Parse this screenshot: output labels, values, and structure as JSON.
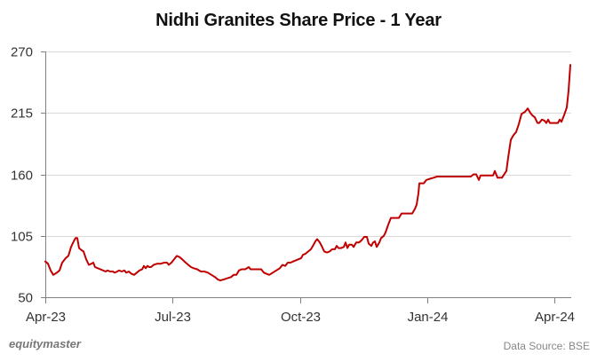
{
  "title": "Nidhi Granites Share Price - 1 Year",
  "footer": {
    "brand": "equitymaster",
    "source": "Data Source: BSE"
  },
  "colors": {
    "line": "#c00000",
    "grid": "#d9d9d9",
    "axis": "#808080"
  },
  "chart_data": {
    "type": "line",
    "title": "Nidhi Granites Share Price - 1 Year",
    "xlabel": "",
    "ylabel": "",
    "ylim": [
      50,
      270
    ],
    "yticks": [
      50,
      105,
      160,
      215,
      270
    ],
    "xticks": [
      "Apr-23",
      "Jul-23",
      "Oct-23",
      "Jan-24",
      "Apr-24"
    ],
    "grid": true,
    "legend": "none",
    "series": [
      {
        "name": "Share Price",
        "points": [
          [
            51,
            82
          ],
          [
            54,
            80
          ],
          [
            57,
            74
          ],
          [
            60,
            70
          ],
          [
            64,
            72
          ],
          [
            67,
            74
          ],
          [
            70,
            81
          ],
          [
            74,
            85
          ],
          [
            77,
            87
          ],
          [
            80,
            95
          ],
          [
            83,
            100
          ],
          [
            85,
            103
          ],
          [
            87,
            103
          ],
          [
            89,
            94
          ],
          [
            92,
            92
          ],
          [
            94,
            91
          ],
          [
            97,
            84
          ],
          [
            100,
            79
          ],
          [
            103,
            80
          ],
          [
            105,
            81
          ],
          [
            107,
            77
          ],
          [
            110,
            76
          ],
          [
            113,
            75
          ],
          [
            116,
            74
          ],
          [
            119,
            73
          ],
          [
            121,
            74
          ],
          [
            124,
            73
          ],
          [
            127,
            73
          ],
          [
            129,
            72
          ],
          [
            132,
            73
          ],
          [
            134,
            74
          ],
          [
            137,
            73
          ],
          [
            140,
            74
          ],
          [
            142,
            72
          ],
          [
            145,
            73
          ],
          [
            148,
            71
          ],
          [
            151,
            70
          ],
          [
            154,
            72
          ],
          [
            157,
            74
          ],
          [
            160,
            75
          ],
          [
            162,
            78
          ],
          [
            164,
            76
          ],
          [
            166,
            78
          ],
          [
            168,
            77
          ],
          [
            170,
            77
          ],
          [
            173,
            79
          ],
          [
            177,
            80
          ],
          [
            181,
            80
          ],
          [
            185,
            81
          ],
          [
            188,
            81
          ],
          [
            190,
            79
          ],
          [
            193,
            81
          ],
          [
            196,
            84
          ],
          [
            199,
            87
          ],
          [
            202,
            86
          ],
          [
            205,
            84
          ],
          [
            209,
            81
          ],
          [
            212,
            79
          ],
          [
            215,
            77
          ],
          [
            218,
            76
          ],
          [
            222,
            75
          ],
          [
            226,
            73
          ],
          [
            230,
            73
          ],
          [
            234,
            72
          ],
          [
            238,
            70
          ],
          [
            242,
            68
          ],
          [
            245,
            66
          ],
          [
            248,
            65
          ],
          [
            252,
            66
          ],
          [
            256,
            67
          ],
          [
            260,
            68
          ],
          [
            263,
            70
          ],
          [
            266,
            70
          ],
          [
            269,
            74
          ],
          [
            272,
            75
          ],
          [
            276,
            75
          ],
          [
            280,
            77
          ],
          [
            282,
            75
          ],
          [
            285,
            75
          ],
          [
            289,
            75
          ],
          [
            294,
            75
          ],
          [
            297,
            72
          ],
          [
            300,
            71
          ],
          [
            303,
            70
          ],
          [
            307,
            72
          ],
          [
            311,
            74
          ],
          [
            315,
            76
          ],
          [
            318,
            79
          ],
          [
            321,
            78
          ],
          [
            324,
            81
          ],
          [
            327,
            81
          ],
          [
            330,
            82
          ],
          [
            333,
            83
          ],
          [
            336,
            84
          ],
          [
            339,
            85
          ],
          [
            341,
            88
          ],
          [
            344,
            89
          ],
          [
            347,
            91
          ],
          [
            350,
            93
          ],
          [
            353,
            97
          ],
          [
            355,
            100
          ],
          [
            357,
            102
          ],
          [
            360,
            99
          ],
          [
            362,
            96
          ],
          [
            365,
            91
          ],
          [
            368,
            90
          ],
          [
            371,
            91
          ],
          [
            374,
            93
          ],
          [
            377,
            93
          ],
          [
            379,
            96
          ],
          [
            381,
            94
          ],
          [
            384,
            94
          ],
          [
            387,
            95
          ],
          [
            389,
            99
          ],
          [
            391,
            94
          ],
          [
            393,
            97
          ],
          [
            396,
            97
          ],
          [
            398,
            95
          ],
          [
            401,
            99
          ],
          [
            404,
            99
          ],
          [
            407,
            101
          ],
          [
            410,
            104
          ],
          [
            413,
            104
          ],
          [
            415,
            98
          ],
          [
            418,
            96
          ],
          [
            420,
            99
          ],
          [
            422,
            100
          ],
          [
            424,
            95
          ],
          [
            427,
            99
          ],
          [
            429,
            103
          ],
          [
            432,
            105
          ],
          [
            434,
            108
          ],
          [
            437,
            115
          ],
          [
            440,
            121
          ],
          [
            443,
            121
          ],
          [
            446,
            121
          ],
          [
            449,
            121
          ],
          [
            452,
            125
          ],
          [
            455,
            125
          ],
          [
            458,
            125
          ],
          [
            461,
            125
          ],
          [
            464,
            125
          ],
          [
            467,
            129
          ],
          [
            469,
            133
          ],
          [
            471,
            143
          ],
          [
            472,
            152
          ],
          [
            474,
            152
          ],
          [
            477,
            152
          ],
          [
            480,
            155
          ],
          [
            484,
            156
          ],
          [
            488,
            157
          ],
          [
            492,
            158
          ],
          [
            496,
            158
          ],
          [
            500,
            158
          ],
          [
            505,
            158
          ],
          [
            510,
            158
          ],
          [
            515,
            158
          ],
          [
            520,
            158
          ],
          [
            525,
            158
          ],
          [
            530,
            158
          ],
          [
            533,
            160
          ],
          [
            536,
            160
          ],
          [
            539,
            155
          ],
          [
            541,
            159
          ],
          [
            545,
            159
          ],
          [
            550,
            159
          ],
          [
            555,
            159
          ],
          [
            557,
            163
          ],
          [
            560,
            157
          ],
          [
            565,
            157
          ],
          [
            570,
            163
          ],
          [
            572,
            175
          ],
          [
            575,
            191
          ],
          [
            578,
            195
          ],
          [
            581,
            198
          ],
          [
            584,
            205
          ],
          [
            587,
            214
          ],
          [
            591,
            216
          ],
          [
            594,
            219
          ],
          [
            597,
            215
          ],
          [
            599,
            213
          ],
          [
            602,
            211
          ],
          [
            605,
            206
          ],
          [
            607,
            206
          ],
          [
            610,
            209
          ],
          [
            613,
            208
          ],
          [
            615,
            206
          ],
          [
            617,
            209
          ],
          [
            619,
            206
          ],
          [
            623,
            206
          ],
          [
            628,
            206
          ],
          [
            630,
            209
          ],
          [
            632,
            207
          ],
          [
            635,
            213
          ],
          [
            638,
            220
          ],
          [
            640,
            235
          ],
          [
            642,
            258
          ]
        ]
      }
    ]
  }
}
